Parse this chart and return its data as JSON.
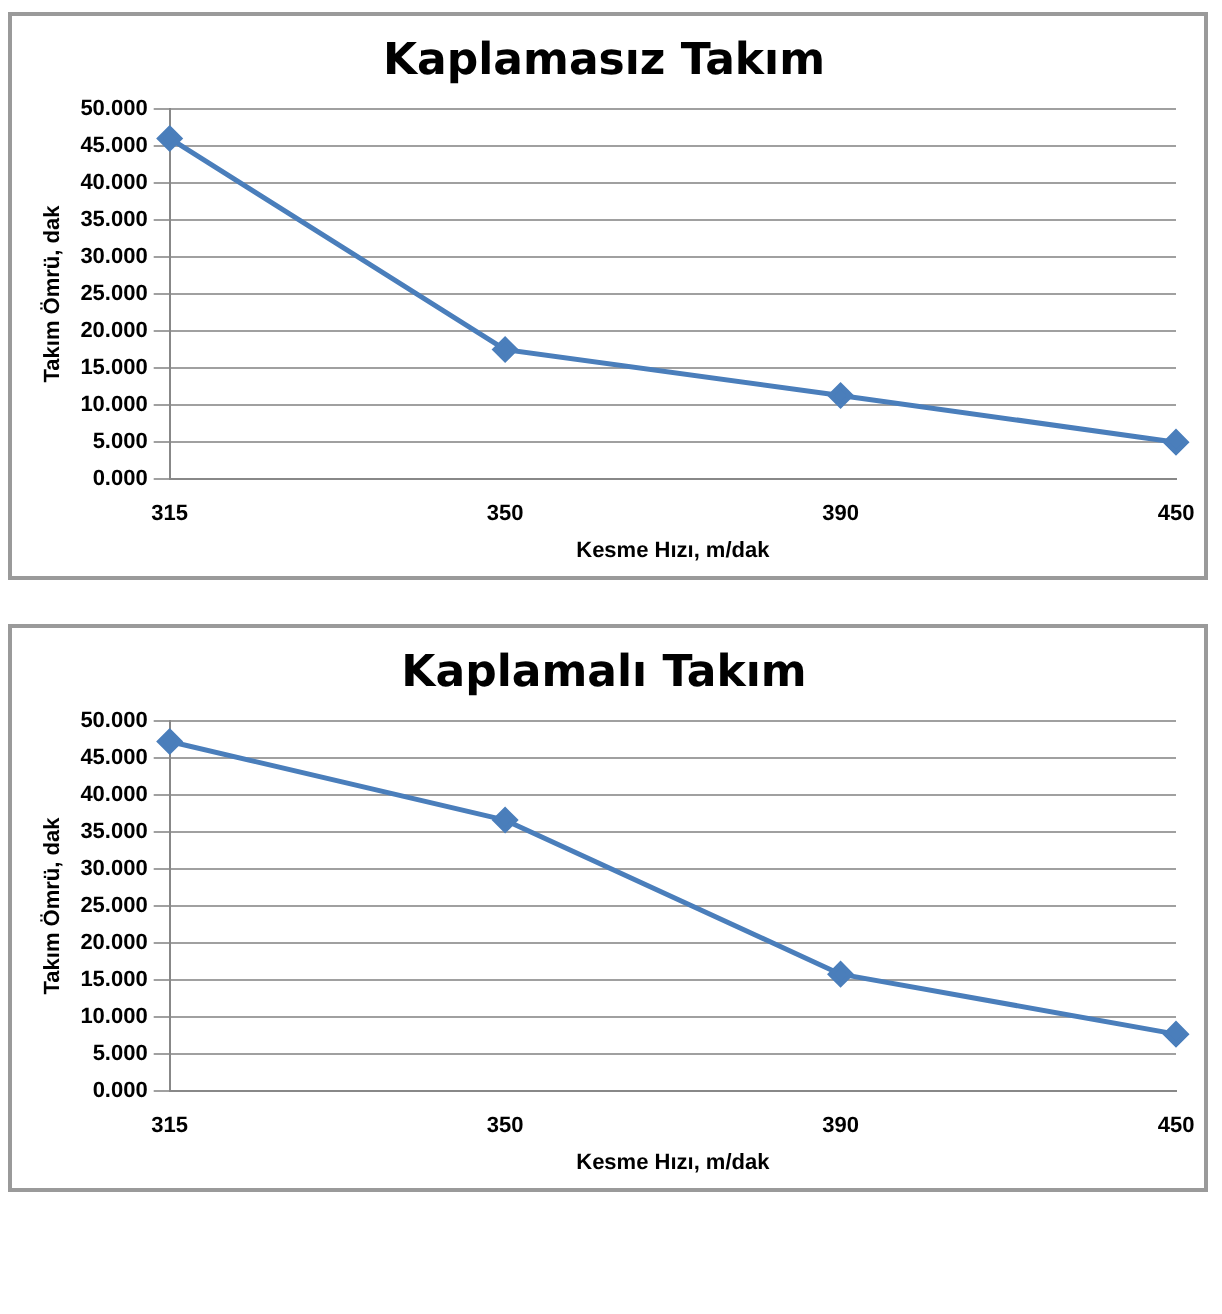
{
  "chart_data": [
    {
      "type": "line",
      "title": "Kaplamasız Takım",
      "xlabel": "Kesme Hızı, m/dak",
      "ylabel": "Takım Ömrü, dak",
      "categories": [
        "315",
        "350",
        "390",
        "450"
      ],
      "series": [
        {
          "color": "#4a7ebb",
          "values": [
            46,
            17.5,
            11.3,
            5
          ]
        }
      ],
      "ylim": [
        0,
        50
      ],
      "yticks": [
        {
          "value": 0,
          "label": "0.000"
        },
        {
          "value": 5,
          "label": "5.000"
        },
        {
          "value": 10,
          "label": "10.000"
        },
        {
          "value": 15,
          "label": "15.000"
        },
        {
          "value": 20,
          "label": "20.000"
        },
        {
          "value": 25,
          "label": "25.000"
        },
        {
          "value": 30,
          "label": "30.000"
        },
        {
          "value": 35,
          "label": "35.000"
        },
        {
          "value": 40,
          "label": "40.000"
        },
        {
          "value": 45,
          "label": "45.000"
        },
        {
          "value": 50,
          "label": "50.000"
        }
      ],
      "grid": "y",
      "legend": false,
      "marker": "diamond",
      "line_style": "solid"
    },
    {
      "type": "line",
      "title": "Kaplamalı Takım",
      "xlabel": "Kesme Hızı, m/dak",
      "ylabel": "Takım Ömrü, dak",
      "categories": [
        "315",
        "350",
        "390",
        "450"
      ],
      "series": [
        {
          "color": "#4a7ebb",
          "values": [
            47.2,
            36.6,
            15.8,
            7.7
          ]
        }
      ],
      "ylim": [
        0,
        50
      ],
      "yticks": [
        {
          "value": 0,
          "label": "0.000"
        },
        {
          "value": 5,
          "label": "5.000"
        },
        {
          "value": 10,
          "label": "10.000"
        },
        {
          "value": 15,
          "label": "15.000"
        },
        {
          "value": 20,
          "label": "20.000"
        },
        {
          "value": 25,
          "label": "25.000"
        },
        {
          "value": 30,
          "label": "30.000"
        },
        {
          "value": 35,
          "label": "35.000"
        },
        {
          "value": 40,
          "label": "40.000"
        },
        {
          "value": 45,
          "label": "45.000"
        },
        {
          "value": 50,
          "label": "50.000"
        }
      ],
      "grid": "y",
      "legend": false,
      "marker": "diamond",
      "line_style": "solid"
    }
  ]
}
